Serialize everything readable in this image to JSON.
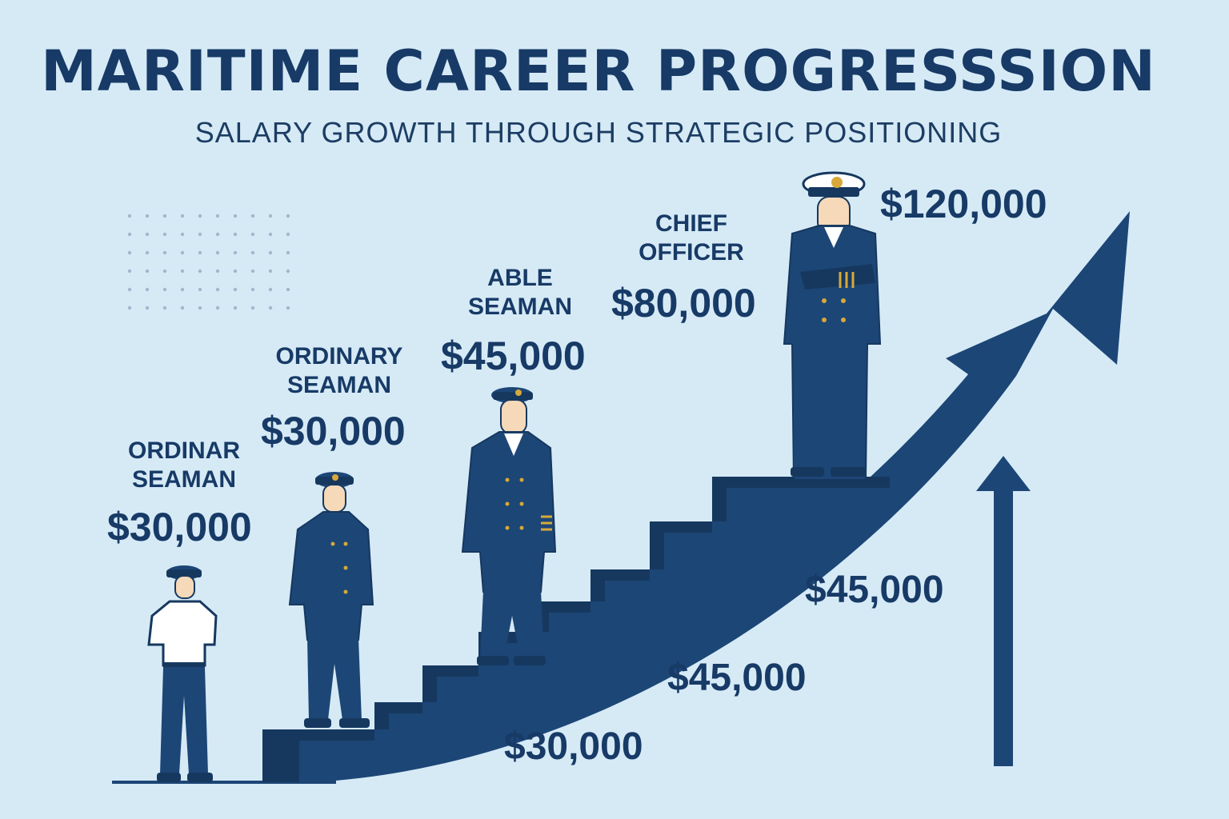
{
  "title": "MARITIME CAREER PROGRESSSION",
  "subtitle": "SALARY GROWTH THROUGH STRATEGIC POSITIONING",
  "colors": {
    "background": "#d6eaf6",
    "navy": "#1c4676",
    "dark_navy": "#173a66",
    "gold": "#d8a93a"
  },
  "stages": [
    {
      "role_line1": "ORDINAR",
      "role_line2": "SEAMAN",
      "salary": "$30,000"
    },
    {
      "role_line1": "ORDINARY",
      "role_line2": "SEAMAN",
      "salary": "$30,000"
    },
    {
      "role_line1": "ABLE",
      "role_line2": "SEAMAN",
      "salary": "$45,000"
    },
    {
      "role_line1": "CHIEF",
      "role_line2": "OFFICER",
      "salary": "$80,000"
    },
    {
      "salary": "$120,000"
    }
  ],
  "bottom_salaries": [
    "$30,000",
    "$45,000",
    "$45,000"
  ],
  "icons": [
    "sailor-figure",
    "staircase",
    "growth-arrow",
    "up-arrow",
    "dot-grid"
  ]
}
